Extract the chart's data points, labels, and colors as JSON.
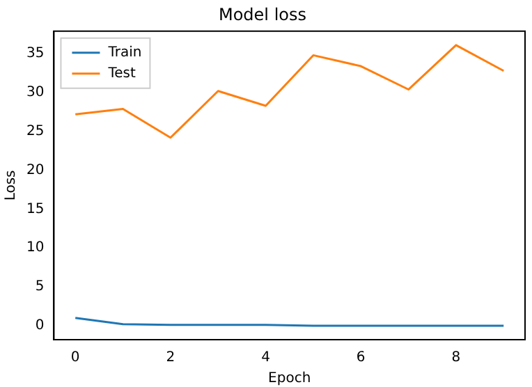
{
  "chart_data": {
    "type": "line",
    "title": "Model loss",
    "xlabel": "Epoch",
    "ylabel": "Loss",
    "x": [
      0,
      1,
      2,
      3,
      4,
      5,
      6,
      7,
      8,
      9
    ],
    "series": [
      {
        "name": "Train",
        "color": "#1f77b4",
        "values": [
          1.0,
          0.2,
          0.1,
          0.1,
          0.1,
          0.0,
          0.0,
          0.0,
          0.0,
          0.0
        ]
      },
      {
        "name": "Test",
        "color": "#ff7f0e",
        "values": [
          27.2,
          27.9,
          24.2,
          30.2,
          28.3,
          34.8,
          33.4,
          30.4,
          36.1,
          32.8
        ]
      }
    ],
    "xlim": [
      -0.45,
      9.45
    ],
    "xticks": [
      0,
      2,
      4,
      6,
      8
    ],
    "ylim": [
      -1.8,
      37.9
    ],
    "yticks": [
      0,
      5,
      10,
      15,
      20,
      25,
      30,
      35
    ],
    "legend": "top left",
    "grid": false,
    "marker": "none",
    "line_style": "solid"
  }
}
